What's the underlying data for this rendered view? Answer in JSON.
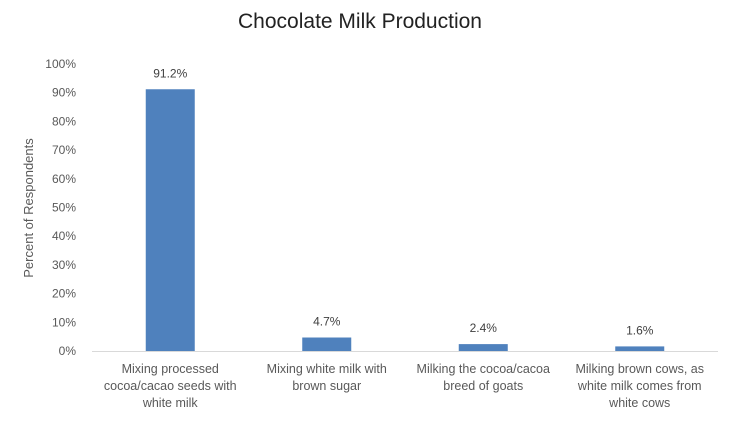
{
  "chart_data": {
    "type": "bar",
    "title": "Chocolate Milk Production",
    "ylabel": "Percent of Respondents",
    "xlabel": "",
    "ylim": [
      0,
      100
    ],
    "yticks": [
      "0%",
      "10%",
      "20%",
      "30%",
      "40%",
      "50%",
      "60%",
      "70%",
      "80%",
      "90%",
      "100%"
    ],
    "categories": [
      [
        "Mixing processed",
        "cocoa/cacao seeds with",
        "white milk"
      ],
      [
        "Mixing white milk with",
        "brown sugar"
      ],
      [
        "Milking the cocoa/cacoa",
        "breed of goats"
      ],
      [
        "Milking brown cows, as",
        "white milk comes from",
        "white cows"
      ]
    ],
    "values": [
      91.2,
      4.7,
      2.4,
      1.6
    ],
    "data_labels": [
      "91.2%",
      "4.7%",
      "2.4%",
      "1.6%"
    ],
    "bar_color": "#4f81bd",
    "grid": false,
    "legend": "none"
  }
}
